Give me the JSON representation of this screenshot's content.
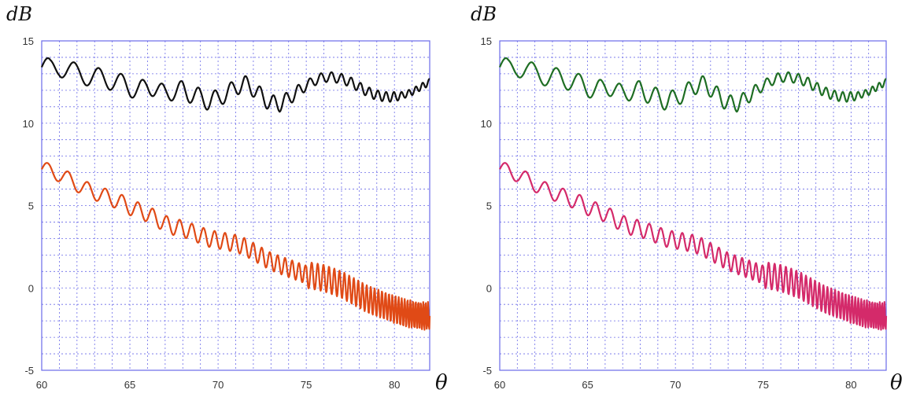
{
  "chart_data": [
    {
      "type": "line",
      "title": "",
      "xlabel": "θ",
      "ylabel": "dB",
      "xlim": [
        60,
        82
      ],
      "ylim": [
        -5,
        15
      ],
      "x_ticks": [
        "60",
        "65",
        "70",
        "75",
        "80"
      ],
      "y_ticks": [
        "15",
        "10",
        "5",
        "0",
        "-5"
      ],
      "grid": true,
      "series": [
        {
          "color": "#111111",
          "x": [
            60,
            60.5,
            61,
            61.5,
            62,
            62.5,
            63,
            63.5,
            64,
            64.5,
            65,
            65.5,
            66,
            66.5,
            67,
            67.5,
            68,
            68.5,
            69,
            69.5,
            70,
            70.5,
            71,
            71.5,
            72,
            72.5,
            73,
            73.5,
            74,
            74.5,
            75,
            75.5,
            76,
            76.5,
            77,
            77.5,
            78,
            78.5,
            79,
            79.5,
            80,
            80.5,
            81,
            81.5,
            82
          ],
          "y": [
            13.4,
            13.2,
            13.5,
            13.3,
            13.0,
            12.9,
            12.8,
            12.7,
            12.6,
            12.4,
            12.2,
            12.0,
            12.2,
            12.1,
            11.8,
            11.9,
            12.0,
            11.8,
            11.5,
            11.4,
            11.5,
            11.8,
            12.2,
            12.4,
            12.1,
            11.6,
            11.2,
            11.2,
            11.5,
            11.9,
            12.3,
            12.6,
            12.8,
            12.8,
            12.7,
            12.5,
            12.2,
            11.9,
            11.7,
            11.6,
            11.6,
            11.7,
            11.9,
            12.2,
            12.5
          ],
          "ripple": [
            0.7,
            0.7,
            0.7,
            0.6,
            0.6,
            0.6,
            0.6,
            0.6,
            0.6,
            0.6,
            0.6,
            0.6,
            0.5,
            0.5,
            0.5,
            0.5,
            0.6,
            0.6,
            0.6,
            0.6,
            0.5,
            0.5,
            0.5,
            0.5,
            0.5,
            0.5,
            0.5,
            0.5,
            0.4,
            0.4,
            0.3,
            0.3,
            0.3,
            0.3,
            0.3,
            0.3,
            0.3,
            0.3,
            0.3,
            0.3,
            0.3,
            0.2,
            0.2,
            0.2,
            0.2
          ]
        },
        {
          "color": "#e04a16",
          "x": [
            60,
            60.5,
            61,
            61.5,
            62,
            62.5,
            63,
            63.5,
            64,
            64.5,
            65,
            65.5,
            66,
            66.5,
            67,
            67.5,
            68,
            68.5,
            69,
            69.5,
            70,
            70.5,
            71,
            71.5,
            72,
            72.5,
            73,
            73.5,
            74,
            74.5,
            75,
            75.5,
            76,
            76.5,
            77,
            77.5,
            78,
            78.5,
            79,
            79.5,
            80,
            80.5,
            81,
            81.5,
            82
          ],
          "y": [
            7.2,
            7.1,
            6.9,
            6.6,
            6.3,
            6.0,
            5.8,
            5.6,
            5.4,
            5.2,
            4.9,
            4.7,
            4.5,
            4.2,
            3.9,
            3.7,
            3.6,
            3.4,
            3.2,
            3.0,
            2.9,
            2.8,
            2.7,
            2.5,
            2.2,
            1.9,
            1.6,
            1.4,
            1.2,
            1.0,
            0.8,
            0.7,
            0.6,
            0.4,
            0.2,
            -0.1,
            -0.4,
            -0.7,
            -0.9,
            -1.1,
            -1.3,
            -1.5,
            -1.6,
            -1.7,
            -1.7
          ]
        }
      ]
    },
    {
      "type": "line",
      "title": "",
      "xlabel": "θ",
      "ylabel": "dB",
      "xlim": [
        60,
        82
      ],
      "ylim": [
        -5,
        15
      ],
      "x_ticks": [
        "60",
        "65",
        "70",
        "75",
        "80"
      ],
      "y_ticks": [
        "15",
        "10",
        "5",
        "0",
        "-5"
      ],
      "grid": true,
      "series": [
        {
          "color": "#1f6e24",
          "x": [
            60,
            60.5,
            61,
            61.5,
            62,
            62.5,
            63,
            63.5,
            64,
            64.5,
            65,
            65.5,
            66,
            66.5,
            67,
            67.5,
            68,
            68.5,
            69,
            69.5,
            70,
            70.5,
            71,
            71.5,
            72,
            72.5,
            73,
            73.5,
            74,
            74.5,
            75,
            75.5,
            76,
            76.5,
            77,
            77.5,
            78,
            78.5,
            79,
            79.5,
            80,
            80.5,
            81,
            81.5,
            82
          ],
          "y": [
            13.4,
            13.2,
            13.5,
            13.3,
            13.0,
            12.9,
            12.8,
            12.7,
            12.6,
            12.4,
            12.2,
            12.0,
            12.2,
            12.1,
            11.8,
            11.9,
            12.0,
            11.8,
            11.5,
            11.4,
            11.5,
            11.8,
            12.2,
            12.4,
            12.1,
            11.6,
            11.2,
            11.2,
            11.5,
            11.9,
            12.3,
            12.6,
            12.8,
            12.8,
            12.7,
            12.5,
            12.2,
            11.9,
            11.7,
            11.6,
            11.6,
            11.7,
            11.9,
            12.2,
            12.5
          ],
          "ripple": [
            0.7,
            0.7,
            0.7,
            0.6,
            0.6,
            0.6,
            0.6,
            0.6,
            0.6,
            0.6,
            0.6,
            0.6,
            0.5,
            0.5,
            0.5,
            0.5,
            0.6,
            0.6,
            0.6,
            0.6,
            0.5,
            0.5,
            0.5,
            0.5,
            0.5,
            0.5,
            0.5,
            0.5,
            0.4,
            0.4,
            0.3,
            0.3,
            0.3,
            0.3,
            0.3,
            0.3,
            0.3,
            0.3,
            0.3,
            0.3,
            0.3,
            0.2,
            0.2,
            0.2,
            0.2
          ]
        },
        {
          "color": "#d42a6a",
          "x": [
            60,
            60.5,
            61,
            61.5,
            62,
            62.5,
            63,
            63.5,
            64,
            64.5,
            65,
            65.5,
            66,
            66.5,
            67,
            67.5,
            68,
            68.5,
            69,
            69.5,
            70,
            70.5,
            71,
            71.5,
            72,
            72.5,
            73,
            73.5,
            74,
            74.5,
            75,
            75.5,
            76,
            76.5,
            77,
            77.5,
            78,
            78.5,
            79,
            79.5,
            80,
            80.5,
            81,
            81.5,
            82
          ],
          "y": [
            7.2,
            7.1,
            6.9,
            6.6,
            6.3,
            6.0,
            5.8,
            5.6,
            5.4,
            5.2,
            4.9,
            4.7,
            4.5,
            4.2,
            3.9,
            3.7,
            3.6,
            3.4,
            3.2,
            3.0,
            2.9,
            2.8,
            2.7,
            2.5,
            2.2,
            1.9,
            1.6,
            1.4,
            1.2,
            1.0,
            0.8,
            0.7,
            0.6,
            0.4,
            0.2,
            -0.1,
            -0.4,
            -0.7,
            -0.9,
            -1.1,
            -1.3,
            -1.5,
            -1.6,
            -1.7,
            -1.7
          ]
        }
      ]
    }
  ]
}
